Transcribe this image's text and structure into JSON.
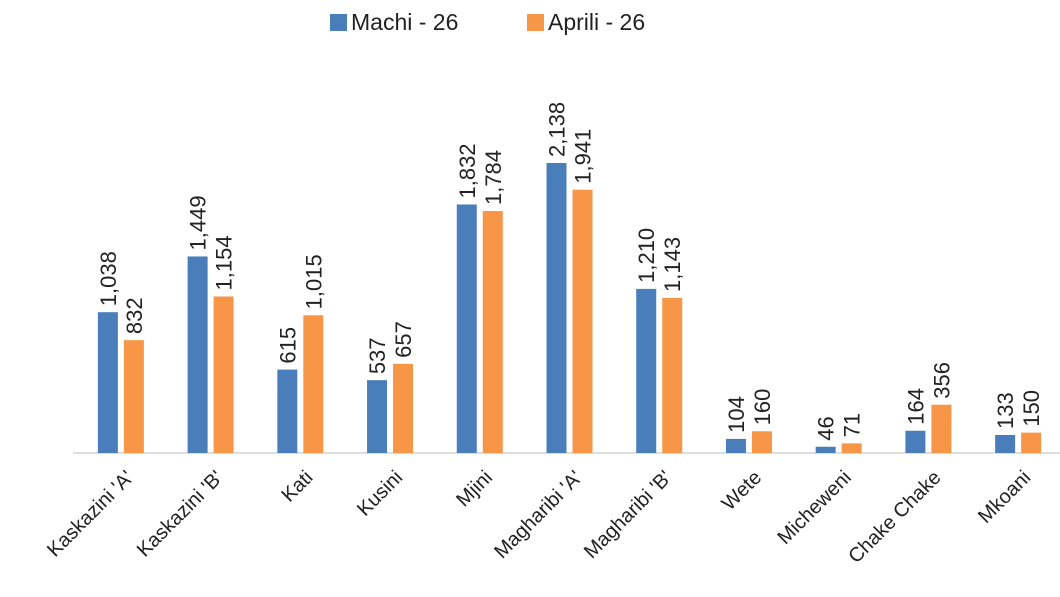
{
  "chart_data": {
    "type": "bar",
    "categories": [
      "Kaskazini 'A'",
      "Kaskazini 'B'",
      "Kati",
      "Kusini",
      "Mjini",
      "Magharibi 'A'",
      "Magharibi 'B'",
      "Wete",
      "Micheweni",
      "Chake Chake",
      "Mkoani"
    ],
    "series": [
      {
        "name": "Machi - 26",
        "color": "#4a7ebb",
        "values": [
          1038,
          1449,
          615,
          537,
          1832,
          2138,
          1210,
          104,
          46,
          164,
          133
        ],
        "value_labels": [
          "1,038",
          "1,449",
          "615",
          "537",
          "1,832",
          "2,138",
          "1,210",
          "104",
          "46",
          "164",
          "133"
        ]
      },
      {
        "name": "Aprili - 26",
        "color": "#f79646",
        "values": [
          832,
          1154,
          1015,
          657,
          1784,
          1941,
          1143,
          160,
          71,
          356,
          150
        ],
        "value_labels": [
          "832",
          "1,154",
          "1,015",
          "657",
          "1,784",
          "1,941",
          "1,143",
          "160",
          "71",
          "356",
          "150"
        ]
      }
    ],
    "legend": "top"
  }
}
